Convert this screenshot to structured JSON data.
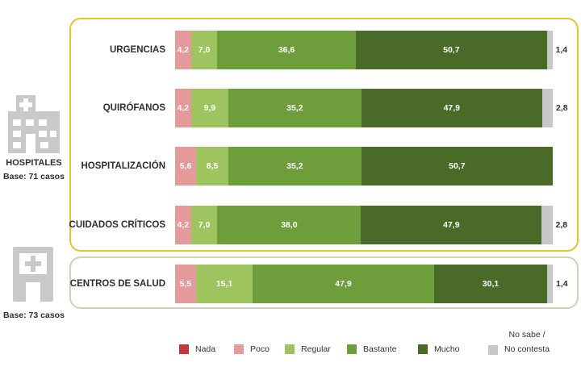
{
  "chart_data": {
    "type": "bar",
    "orientation": "horizontal-stacked",
    "categories": [
      "URGENCIAS",
      "QUIRÓFANOS",
      "HOSPITALIZACIÓN",
      "CUIDADOS CRÍTICOS",
      "CENTROS DE SALUD"
    ],
    "series": [
      {
        "name": "Nada",
        "color": "#c0393b",
        "values": [
          0,
          0,
          0,
          0,
          0
        ]
      },
      {
        "name": "Poco",
        "color": "#e4999b",
        "values": [
          4.2,
          4.2,
          5.6,
          4.2,
          5.5
        ]
      },
      {
        "name": "Regular",
        "color": "#9dc45f",
        "values": [
          7.0,
          9.9,
          8.5,
          7.0,
          15.1
        ]
      },
      {
        "name": "Bastante",
        "color": "#6e9d3b",
        "values": [
          36.6,
          35.2,
          35.2,
          38.0,
          47.9
        ]
      },
      {
        "name": "Mucho",
        "color": "#4a6a27",
        "values": [
          50.7,
          47.9,
          50.7,
          47.9,
          30.1
        ]
      },
      {
        "name": "No sabe / No contesta",
        "color": "#c8c8c8",
        "values": [
          1.4,
          2.8,
          0,
          2.8,
          1.4
        ]
      }
    ],
    "value_labels": [
      [
        "",
        "4,2",
        "7,0",
        "36,6",
        "50,7",
        "1,4"
      ],
      [
        "",
        "4,2",
        "9,9",
        "35,2",
        "47,9",
        "2,8"
      ],
      [
        "",
        "5,6",
        "8,5",
        "35,2",
        "50,7",
        ""
      ],
      [
        "",
        "4,2",
        "7,0",
        "38,0",
        "47,9",
        "2,8"
      ],
      [
        "",
        "5,5",
        "15,1",
        "47,9",
        "30,1",
        "1,4"
      ]
    ],
    "legend_position": "bottom",
    "xlim": [
      0,
      100
    ],
    "grid": false
  },
  "groups": {
    "hospitales": {
      "title": "HOSPITALES",
      "base": "Base: 71 casos"
    },
    "centros": {
      "base": "Base: 73 casos"
    }
  },
  "legend": {
    "nada": "Nada",
    "poco": "Poco",
    "regular": "Regular",
    "bastante": "Bastante",
    "mucho": "Mucho",
    "nsnc_line1": "No sabe /",
    "nsnc_line2": "No contesta"
  },
  "icons": {
    "hospital": "hospital-building-icon",
    "health_center": "health-center-icon"
  }
}
